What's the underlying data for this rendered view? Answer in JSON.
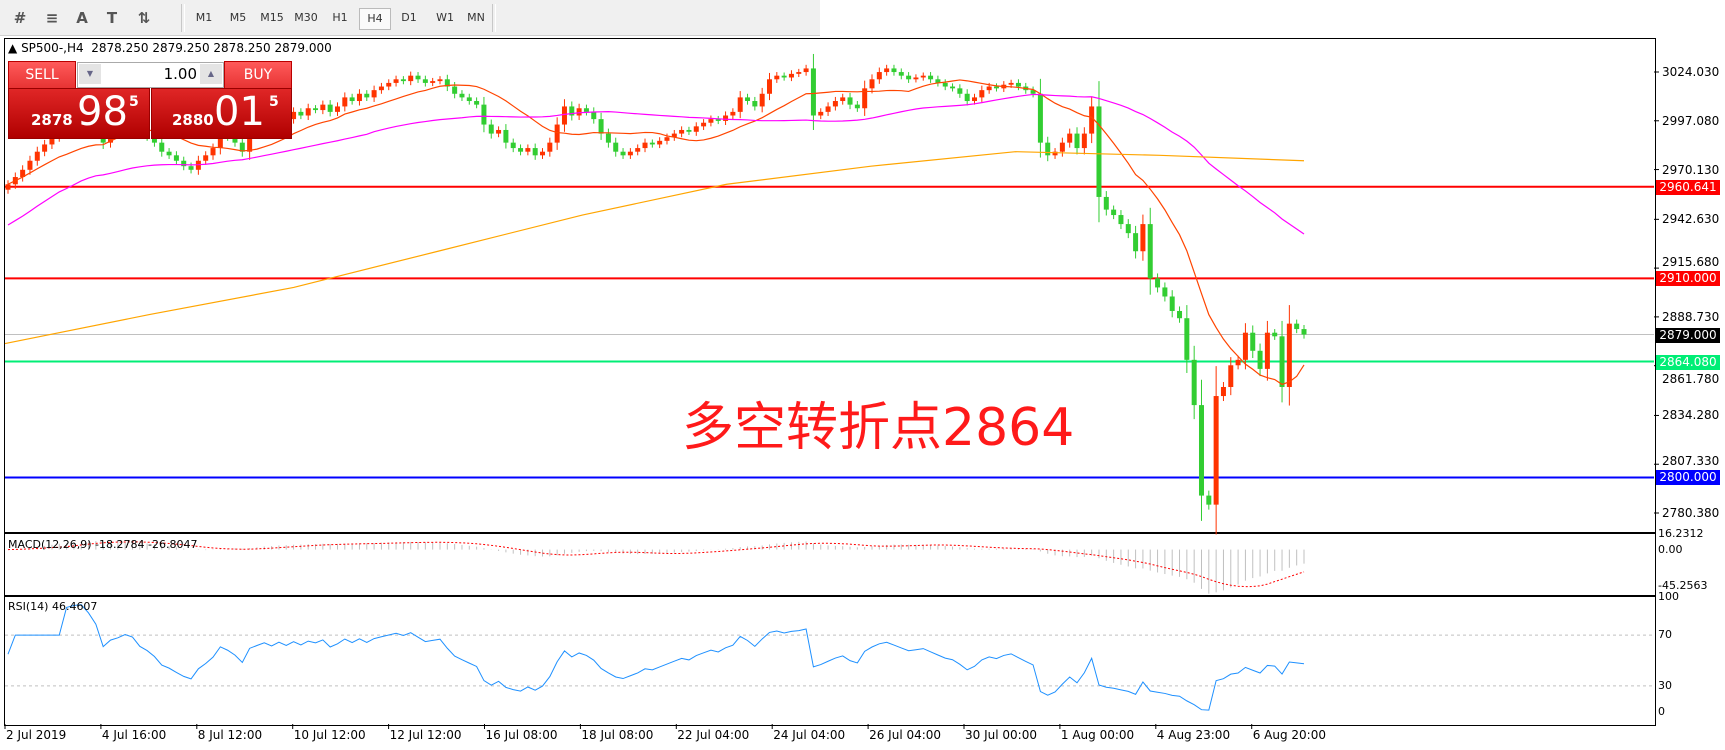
{
  "toolbar": {
    "icons": [
      "chart-elements-icon",
      "fibonacci-icon",
      "text-icon",
      "text-label-icon",
      "arrows-icon"
    ],
    "icon_glyphs": [
      "#",
      "≡",
      "A",
      "T",
      "⇅"
    ],
    "timeframes": [
      "M1",
      "M5",
      "M15",
      "M30",
      "H1",
      "H4",
      "D1",
      "W1",
      "MN"
    ],
    "selected": "H4"
  },
  "header": {
    "symbol": "SP500-,H4",
    "ohlc": "2878.250 2879.250 2878.250 2879.000"
  },
  "trade_panel": {
    "sell_label": "SELL",
    "buy_label": "BUY",
    "lot": "1.00",
    "sell_small": "2878",
    "sell_large": "98",
    "sell_exp": "5",
    "buy_small": "2880",
    "buy_large": "01",
    "buy_exp": "5"
  },
  "annotation": "多空转折点2864",
  "colors": {
    "bull": "#ff3300",
    "bear": "#32cd32",
    "ma_fast": "#ff4500",
    "ma_mid": "#ff00ff",
    "ma_slow": "#ffa500",
    "rsi": "#1e90ff",
    "macd_hist": "#c0c0c0",
    "macd_signal": "#ff0000"
  },
  "chart_data": {
    "type": "candlestick",
    "price_axis": [
      "3024.030",
      "2997.080",
      "2970.130",
      "2942.630",
      "2915.680",
      "2888.730",
      "2861.780",
      "2834.280",
      "2807.330",
      "2780.380"
    ],
    "time_axis": [
      "2 Jul 2019",
      "4 Jul 16:00",
      "8 Jul 12:00",
      "10 Jul 12:00",
      "12 Jul 12:00",
      "16 Jul 08:00",
      "18 Jul 08:00",
      "22 Jul 04:00",
      "24 Jul 04:00",
      "26 Jul 04:00",
      "30 Jul 00:00",
      "1 Aug 00:00",
      "4 Aug 23:00",
      "6 Aug 20:00"
    ],
    "ylim": [
      2770,
      3040
    ],
    "closes": [
      2962,
      2966,
      2970,
      2975,
      2980,
      2984,
      2988,
      2992,
      2990,
      2995,
      2998,
      2996,
      2993,
      2985,
      2990,
      2992,
      2995,
      2994,
      2990,
      2988,
      2985,
      2980,
      2978,
      2975,
      2972,
      2970,
      2975,
      2978,
      2982,
      2990,
      2988,
      2985,
      2980,
      2992,
      2995,
      2998,
      2996,
      3000,
      2998,
      3002,
      3000,
      3004,
      3003,
      3006,
      3002,
      3005,
      3010,
      3008,
      3012,
      3010,
      3014,
      3016,
      3018,
      3020,
      3019,
      3022,
      3020,
      3018,
      3019,
      3020,
      3016,
      3012,
      3010,
      3008,
      3006,
      2995,
      2990,
      2992,
      2985,
      2982,
      2980,
      2982,
      2978,
      2980,
      2985,
      2995,
      3005,
      3000,
      3004,
      3002,
      2998,
      2990,
      2985,
      2980,
      2978,
      2980,
      2982,
      2985,
      2984,
      2986,
      2988,
      2990,
      2992,
      2991,
      2994,
      2996,
      2998,
      2997,
      3000,
      3002,
      3010,
      3008,
      3005,
      3012,
      3020,
      3022,
      3021,
      3023,
      3024,
      3026,
      3000,
      3002,
      3005,
      3008,
      3010,
      3006,
      3004,
      3015,
      3020,
      3024,
      3026,
      3024,
      3022,
      3020,
      3021,
      3022,
      3020,
      3018,
      3016,
      3015,
      3012,
      3008,
      3010,
      3014,
      3016,
      3015,
      3017,
      3018,
      3016,
      3014,
      3012,
      2985,
      2978,
      2980,
      2985,
      2990,
      2982,
      2990,
      3005,
      2955,
      2948,
      2945,
      2940,
      2935,
      2925,
      2940,
      2910,
      2905,
      2900,
      2892,
      2888,
      2865,
      2840,
      2790,
      2785,
      2845,
      2850,
      2862,
      2865,
      2880,
      2870,
      2860,
      2880,
      2878,
      2850,
      2885,
      2882,
      2879
    ],
    "ma_slow": [
      2874,
      2890,
      2905,
      2925,
      2945,
      2962,
      2972,
      2980,
      2978,
      2975
    ],
    "levels": [
      {
        "value": "2960.641",
        "color": "#ff0000"
      },
      {
        "value": "2910.000",
        "color": "#ff0000"
      },
      {
        "value": "2879.000",
        "color": "#000000",
        "line": "#c0c0c0"
      },
      {
        "value": "2864.080",
        "color": "#00ee76"
      },
      {
        "value": "2800.000",
        "color": "#0000ff"
      }
    ],
    "macd": {
      "label": "MACD(12,26,9) -18.2784 -26.8047",
      "axis": [
        "16.2312",
        "0.00",
        "-45.2563"
      ],
      "range": [
        -45.2563,
        16.2312
      ]
    },
    "rsi": {
      "label": "RSI(14) 46.4607",
      "axis": [
        "100",
        "70",
        "30",
        "0"
      ],
      "levels": [
        70,
        30
      ]
    }
  }
}
